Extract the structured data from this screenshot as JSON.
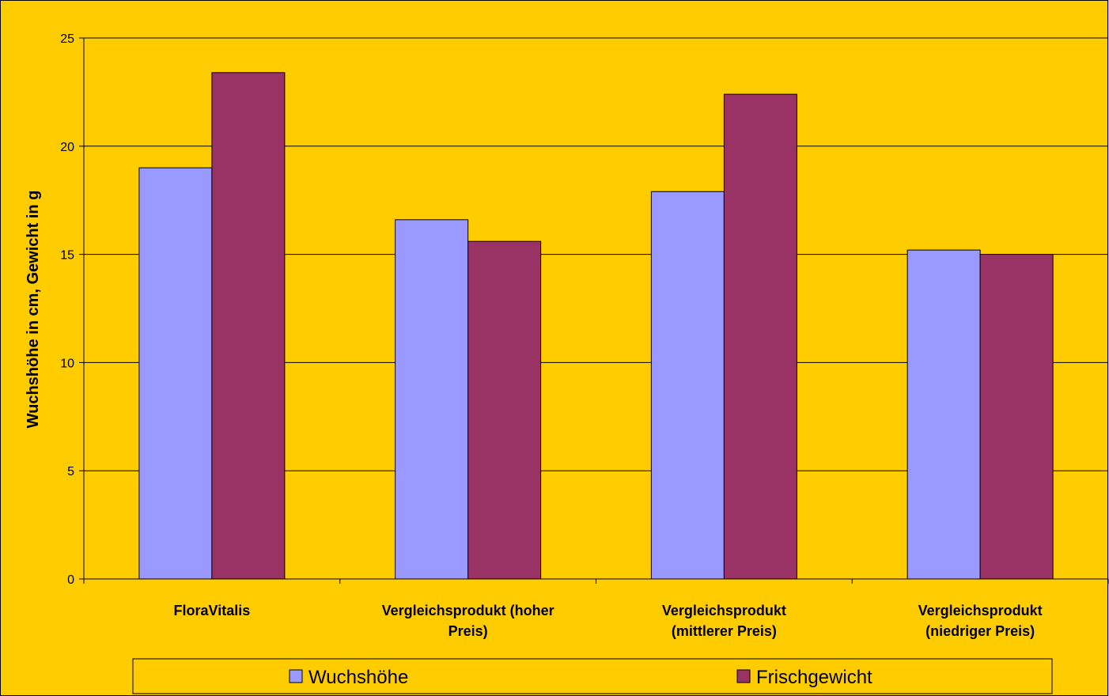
{
  "chart_data": {
    "type": "bar",
    "ylabel": "Wuchshöhe in cm, Gewicht in g",
    "ylim": [
      0,
      25
    ],
    "yticks": [
      0,
      5,
      10,
      15,
      20,
      25
    ],
    "grid": true,
    "legend_position": "bottom",
    "categories": [
      [
        "FloraVitalis"
      ],
      [
        "Vergleichsprodukt (hoher",
        "Preis)"
      ],
      [
        "Vergleichsprodukt",
        "(mittlerer Preis)"
      ],
      [
        "Vergleichsprodukt",
        "(niedriger Preis)"
      ]
    ],
    "series": [
      {
        "name": "Wuchshöhe",
        "color": "#9999FF",
        "values": [
          19.0,
          16.6,
          17.9,
          15.2
        ]
      },
      {
        "name": "Frischgewicht",
        "color": "#993366",
        "values": [
          23.4,
          15.6,
          22.4,
          15.0
        ]
      }
    ],
    "colors": {
      "background": "#FFCC00",
      "gridline": "#000000",
      "bar_border": "#000000"
    }
  }
}
